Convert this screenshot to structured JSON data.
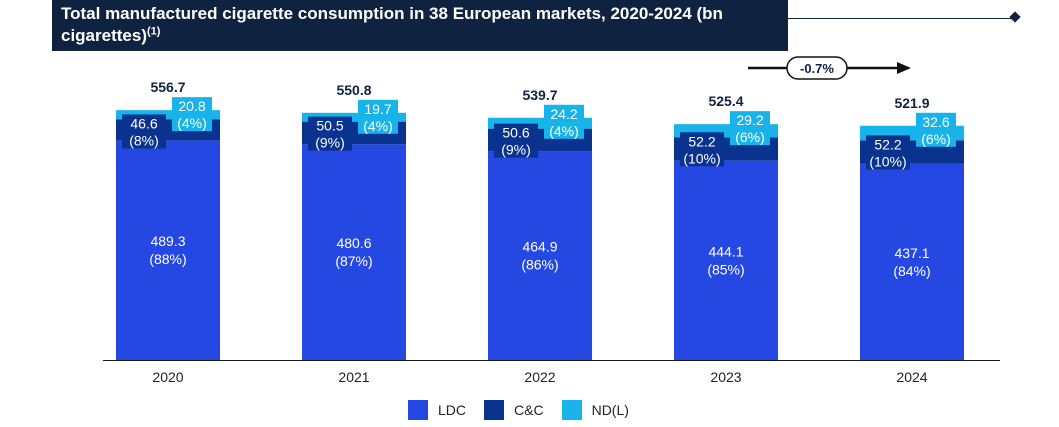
{
  "title": {
    "main": "Total manufactured cigarette consumption in 38 European markets, 2020-2024 (bn cigarettes)",
    "footnote": "(1)"
  },
  "colors": {
    "ldc": "#2548e2",
    "cc": "#0a3390",
    "ndl": "#18b3ea",
    "navy": "#0f2240"
  },
  "chart_data": {
    "type": "bar",
    "stacked": true,
    "title": "Total manufactured cigarette consumption in 38 European markets, 2020-2024 (bn cigarettes)",
    "xlabel": "",
    "ylabel": "",
    "ylim": [
      0,
      600
    ],
    "categories": [
      "2020",
      "2021",
      "2022",
      "2023",
      "2024"
    ],
    "totals": [
      "556.7",
      "550.8",
      "539.7",
      "525.4",
      "521.9"
    ],
    "series": [
      {
        "name": "LDC",
        "key": "ldc",
        "values": [
          489.3,
          480.6,
          464.9,
          444.1,
          437.1
        ],
        "labels": [
          "489.3",
          "480.6",
          "464.9",
          "444.1",
          "437.1"
        ],
        "shares": [
          "(88%)",
          "(87%)",
          "(86%)",
          "(85%)",
          "(84%)"
        ]
      },
      {
        "name": "C&C",
        "key": "cc",
        "values": [
          46.6,
          50.5,
          50.6,
          52.2,
          52.2
        ],
        "labels": [
          "46.6",
          "50.5",
          "50.6",
          "52.2",
          "52.2"
        ],
        "shares": [
          "(8%)",
          "(9%)",
          "(9%)",
          "(10%)",
          "(10%)"
        ]
      },
      {
        "name": "ND(L)",
        "key": "ndl",
        "values": [
          20.8,
          19.7,
          24.2,
          29.2,
          32.6
        ],
        "labels": [
          "20.8",
          "19.7",
          "24.2",
          "29.2",
          "32.6"
        ],
        "shares": [
          "(4%)",
          "(4%)",
          "(4%)",
          "(6%)",
          "(6%)"
        ]
      }
    ],
    "annotation": "-0.7%"
  },
  "legend": [
    {
      "label": "LDC",
      "color": "#2548e2"
    },
    {
      "label": "C&C",
      "color": "#0a3390"
    },
    {
      "label": "ND(L)",
      "color": "#18b3ea"
    }
  ]
}
